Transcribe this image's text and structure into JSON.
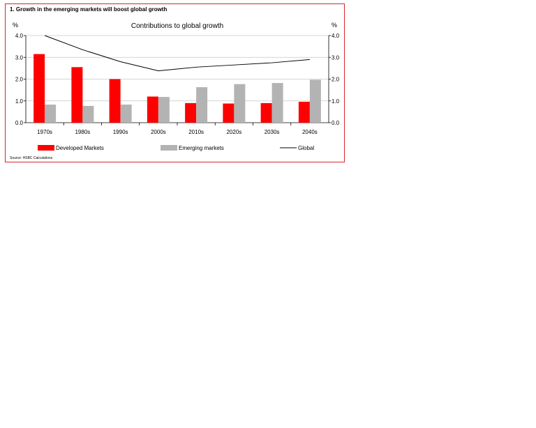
{
  "figure": {
    "title": "1. Growth in the emerging markets will boost global growth",
    "source": "Source: HSBC Calculations"
  },
  "chart_data": {
    "type": "bar",
    "title": "Contributions to global growth",
    "y_unit_left": "%",
    "y_unit_right": "%",
    "ylim": [
      0,
      4
    ],
    "yticks": [
      "0.0",
      "1.0",
      "2.0",
      "3.0",
      "4.0"
    ],
    "categories": [
      "1970s",
      "1980s",
      "1990s",
      "2000s",
      "2010s",
      "2020s",
      "2030s",
      "2040s"
    ],
    "series": [
      {
        "name": "Developed Markets",
        "kind": "bar",
        "color": "#ff0000",
        "values": [
          3.15,
          2.55,
          2.0,
          1.2,
          0.9,
          0.88,
          0.9,
          0.96
        ]
      },
      {
        "name": "Emerging markets",
        "kind": "bar",
        "color": "#b3b3b3",
        "values": [
          0.83,
          0.77,
          0.83,
          1.18,
          1.63,
          1.77,
          1.82,
          1.97
        ]
      },
      {
        "name": "Global",
        "kind": "line",
        "color": "#000000",
        "values": [
          4.0,
          3.35,
          2.8,
          2.38,
          2.55,
          2.65,
          2.75,
          2.9
        ]
      }
    ],
    "grid": true,
    "legend_position": "bottom"
  }
}
